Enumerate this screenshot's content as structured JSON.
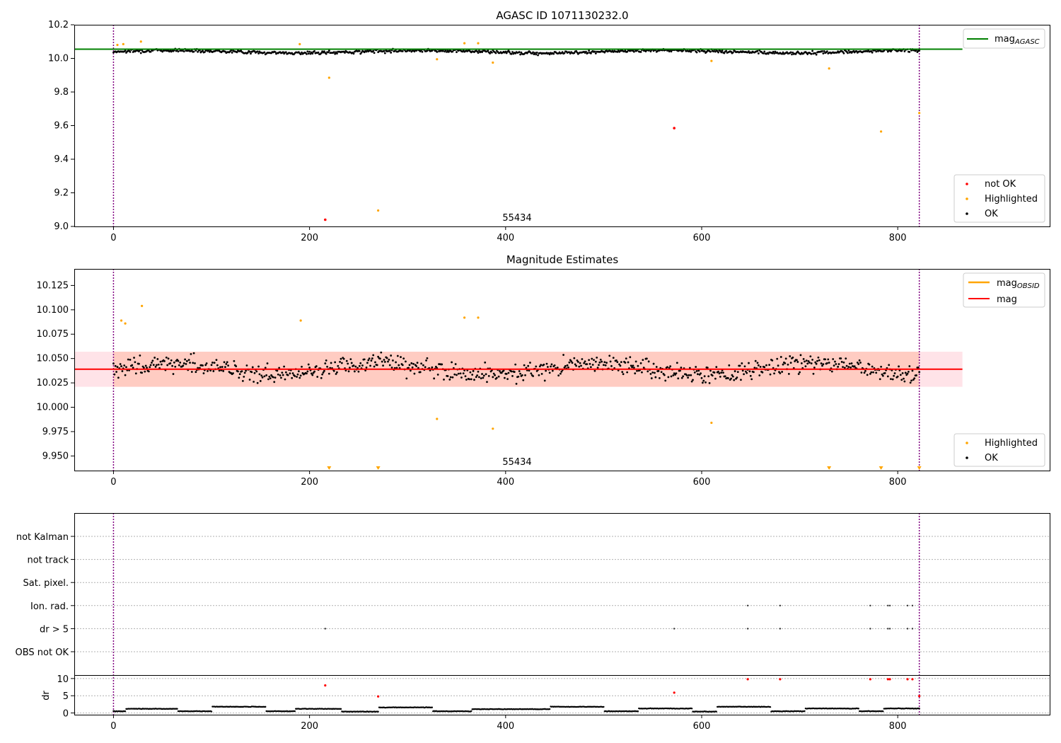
{
  "chart_data": [
    {
      "type": "scatter",
      "title": "AGASC ID 1071130232.0",
      "xlim": [
        -40,
        955
      ],
      "ylim": [
        9.0,
        10.2
      ],
      "xticks": [
        "0",
        "200",
        "400",
        "600",
        "800"
      ],
      "yticks": [
        "9.0",
        "9.2",
        "9.4",
        "9.6",
        "9.8",
        "10.0",
        "10.2"
      ],
      "obsid_label": "55434",
      "vlines": [
        0,
        822
      ],
      "mag_agasc": 10.055,
      "legend_lines": [
        {
          "label": "mag",
          "sub": "AGASC",
          "color": "#008000"
        }
      ],
      "legend_points": [
        {
          "label": "not OK",
          "color": "#ff0000"
        },
        {
          "label": "Highlighted",
          "color": "#ffa500"
        },
        {
          "label": "OK",
          "color": "#000000"
        }
      ],
      "ok_seed": 7,
      "ok_center": 10.04,
      "ok_spread": 0.016,
      "highlighted": [
        [
          4,
          10.08
        ],
        [
          10,
          10.085
        ],
        [
          28,
          10.1
        ],
        [
          190,
          10.085
        ],
        [
          220,
          9.885
        ],
        [
          270,
          9.095
        ],
        [
          330,
          9.995
        ],
        [
          358,
          10.09
        ],
        [
          372,
          10.09
        ],
        [
          387,
          9.975
        ],
        [
          610,
          9.985
        ],
        [
          730,
          9.94
        ],
        [
          783,
          9.565
        ],
        [
          822,
          9.675
        ]
      ],
      "not_ok": [
        [
          216,
          9.04
        ],
        [
          572,
          9.585
        ]
      ]
    },
    {
      "type": "scatter",
      "title": "Magnitude Estimates",
      "xlim": [
        -40,
        955
      ],
      "ylim": [
        9.935,
        10.142
      ],
      "xticks": [
        "0",
        "200",
        "400",
        "600",
        "800"
      ],
      "yticks": [
        "9.950",
        "9.975",
        "10.000",
        "10.025",
        "10.050",
        "10.075",
        "10.100",
        "10.125"
      ],
      "obsid_label": "55434",
      "vlines": [
        0,
        822
      ],
      "mag": 10.039,
      "mag_band": [
        10.021,
        10.057
      ],
      "legend_lines": [
        {
          "label": "mag",
          "sub": "OBSID",
          "color": "#ffa500"
        },
        {
          "label": "mag",
          "sub": "",
          "color": "#ff0000"
        }
      ],
      "legend_points": [
        {
          "label": "Highlighted",
          "color": "#ffa500"
        },
        {
          "label": "OK",
          "color": "#000000"
        }
      ],
      "highlighted": [
        [
          8,
          10.089
        ],
        [
          12,
          10.086
        ],
        [
          29,
          10.104
        ],
        [
          191,
          10.089
        ],
        [
          330,
          9.988
        ],
        [
          358,
          10.092
        ],
        [
          372,
          10.092
        ],
        [
          387,
          9.978
        ],
        [
          610,
          9.984
        ]
      ],
      "clipped_markers": [
        220,
        270,
        730,
        783,
        822
      ]
    },
    {
      "type": "scatter",
      "xlim": [
        -40,
        955
      ],
      "xticks": [
        "0",
        "200",
        "400",
        "600",
        "800"
      ],
      "flag_rows": [
        "not Kalman",
        "not track",
        "Sat. pixel.",
        "Ion. rad.",
        "dr > 5",
        "OBS not OK"
      ],
      "flags": {
        "Ion. rad.": [
          647,
          680,
          772,
          790,
          792,
          810,
          815
        ],
        "dr > 5": [
          216,
          572,
          647,
          680,
          772,
          790,
          792,
          810,
          815
        ]
      },
      "ylabel": "dr",
      "dr_ylim": [
        -0.5,
        11
      ],
      "dr_yticks": [
        "0",
        "5",
        "10"
      ],
      "vlines": [
        0,
        822
      ],
      "dr_red_points": [
        [
          216,
          8.0
        ],
        [
          270,
          4.8
        ],
        [
          572,
          5.9
        ],
        [
          647,
          9.8
        ],
        [
          680,
          9.8
        ],
        [
          772,
          9.8
        ],
        [
          790,
          9.8
        ],
        [
          792,
          9.8
        ],
        [
          810,
          9.8
        ],
        [
          815,
          9.8
        ],
        [
          822,
          4.9
        ]
      ],
      "dr_segments": [
        [
          0,
          12,
          0.5
        ],
        [
          13,
          65,
          1.2
        ],
        [
          66,
          100,
          0.5
        ],
        [
          101,
          155,
          1.8
        ],
        [
          156,
          185,
          0.5
        ],
        [
          186,
          232,
          1.2
        ],
        [
          233,
          270,
          0.4
        ],
        [
          271,
          325,
          1.6
        ],
        [
          326,
          365,
          0.5
        ],
        [
          366,
          445,
          1.1
        ],
        [
          446,
          500,
          1.8
        ],
        [
          501,
          535,
          0.5
        ],
        [
          536,
          590,
          1.3
        ],
        [
          591,
          615,
          0.4
        ],
        [
          616,
          670,
          1.8
        ],
        [
          671,
          705,
          0.5
        ],
        [
          706,
          760,
          1.3
        ],
        [
          761,
          785,
          0.5
        ],
        [
          786,
          822,
          1.3
        ]
      ]
    }
  ]
}
